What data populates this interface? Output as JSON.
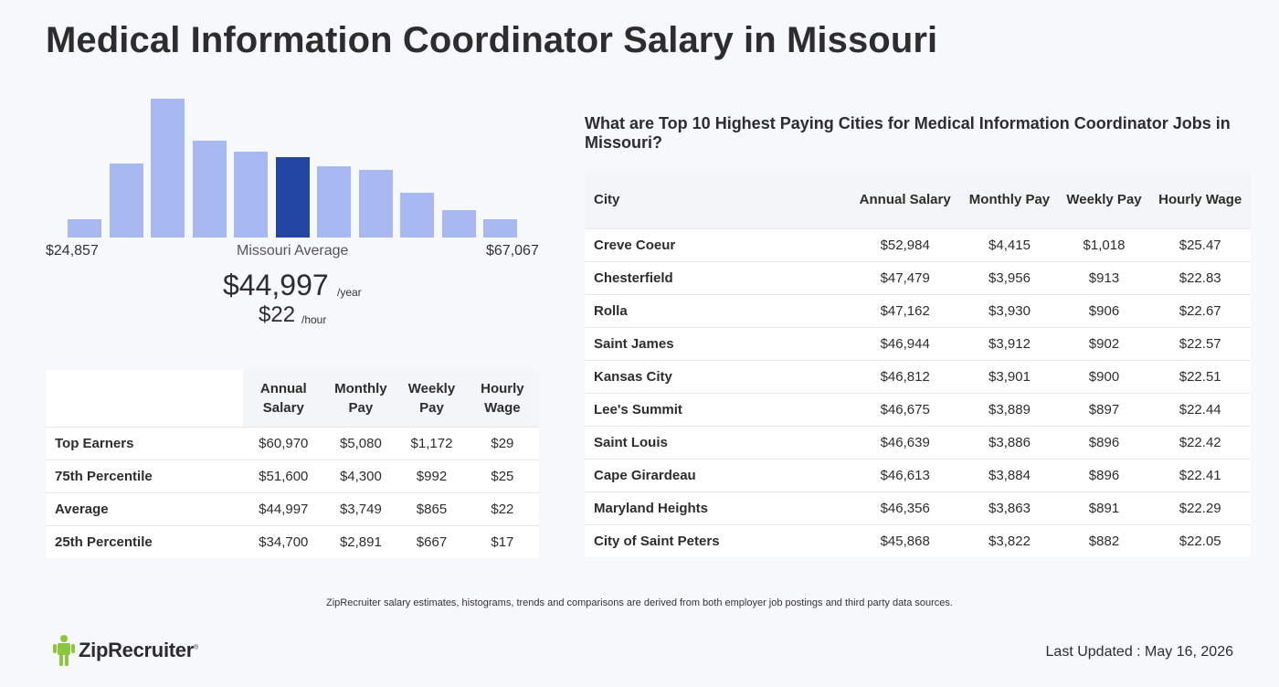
{
  "page": {
    "title": "Medical Information Coordinator Salary in Missouri"
  },
  "histogram": {
    "min_label": "$24,857",
    "max_label": "$67,067",
    "avg_label": "Missouri Average",
    "bars": [
      0.13,
      0.53,
      1.0,
      0.7,
      0.62,
      0.58,
      0.51,
      0.49,
      0.32,
      0.2,
      0.13
    ],
    "active_index": 5,
    "colors": {
      "bar": "#a8b8f0",
      "active": "#2446a3"
    }
  },
  "summary": {
    "annual": "$44,997",
    "annual_unit": "/year",
    "hourly": "$22",
    "hourly_unit": "/hour"
  },
  "percentile_table": {
    "headers": [
      "Annual Salary",
      "Monthly Pay",
      "Weekly Pay",
      "Hourly Wage"
    ],
    "rows": [
      {
        "label": "Top Earners",
        "values": [
          "$60,970",
          "$5,080",
          "$1,172",
          "$29"
        ]
      },
      {
        "label": "75th Percentile",
        "values": [
          "$51,600",
          "$4,300",
          "$992",
          "$25"
        ]
      },
      {
        "label": "Average",
        "values": [
          "$44,997",
          "$3,749",
          "$865",
          "$22"
        ]
      },
      {
        "label": "25th Percentile",
        "values": [
          "$34,700",
          "$2,891",
          "$667",
          "$17"
        ]
      }
    ]
  },
  "cities": {
    "title": "What are Top 10 Highest Paying Cities for Medical Information Coordinator Jobs in Missouri?",
    "headers": [
      "City",
      "Annual Salary",
      "Monthly Pay",
      "Weekly Pay",
      "Hourly Wage"
    ],
    "rows": [
      {
        "city": "Creve Coeur",
        "values": [
          "$52,984",
          "$4,415",
          "$1,018",
          "$25.47"
        ]
      },
      {
        "city": "Chesterfield",
        "values": [
          "$47,479",
          "$3,956",
          "$913",
          "$22.83"
        ]
      },
      {
        "city": "Rolla",
        "values": [
          "$47,162",
          "$3,930",
          "$906",
          "$22.67"
        ]
      },
      {
        "city": "Saint James",
        "values": [
          "$46,944",
          "$3,912",
          "$902",
          "$22.57"
        ]
      },
      {
        "city": "Kansas City",
        "values": [
          "$46,812",
          "$3,901",
          "$900",
          "$22.51"
        ]
      },
      {
        "city": "Lee's Summit",
        "values": [
          "$46,675",
          "$3,889",
          "$897",
          "$22.44"
        ]
      },
      {
        "city": "Saint Louis",
        "values": [
          "$46,639",
          "$3,886",
          "$896",
          "$22.42"
        ]
      },
      {
        "city": "Cape Girardeau",
        "values": [
          "$46,613",
          "$3,884",
          "$896",
          "$22.41"
        ]
      },
      {
        "city": "Maryland Heights",
        "values": [
          "$46,356",
          "$3,863",
          "$891",
          "$22.29"
        ]
      },
      {
        "city": "City of Saint Peters",
        "values": [
          "$45,868",
          "$3,822",
          "$882",
          "$22.05"
        ]
      }
    ]
  },
  "footer": {
    "note": "ZipRecruiter salary estimates, histograms, trends and comparisons are derived from both employer job postings and third party data sources.",
    "logo_text": "ZipRecruiter",
    "logo_mark": "®",
    "logo_color": "#8cc63f",
    "last_updated": "Last Updated : May 16, 2026"
  }
}
